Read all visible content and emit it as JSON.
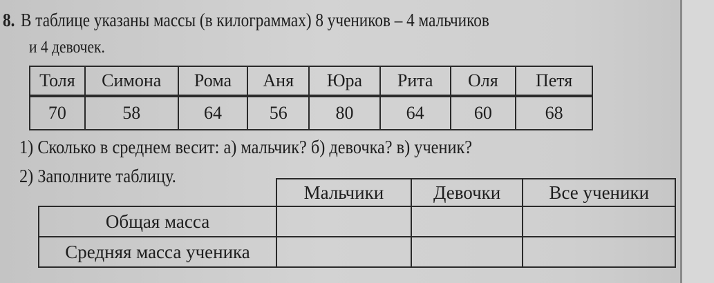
{
  "problem": {
    "number": "8.",
    "line1": "В таблице указаны массы (в килограммах) 8 учеников – 4 мальчиков",
    "line2": "и 4 девочек."
  },
  "mass_table": {
    "names": [
      "Толя",
      "Симона",
      "Рома",
      "Аня",
      "Юра",
      "Рита",
      "Оля",
      "Петя"
    ],
    "masses": [
      "70",
      "58",
      "64",
      "56",
      "80",
      "64",
      "60",
      "68"
    ]
  },
  "questions": {
    "q1": "1) Сколько в среднем весит: а) мальчик? б) девочка? в) ученик?",
    "q2": "2) Заполните таблицу."
  },
  "fill_table": {
    "headers": [
      "Мальчики",
      "Девочки",
      "Все ученики"
    ],
    "rows": [
      {
        "label": "Общая масса",
        "values": [
          "",
          "",
          ""
        ]
      },
      {
        "label": "Средняя масса ученика",
        "values": [
          "",
          "",
          ""
        ]
      }
    ]
  }
}
